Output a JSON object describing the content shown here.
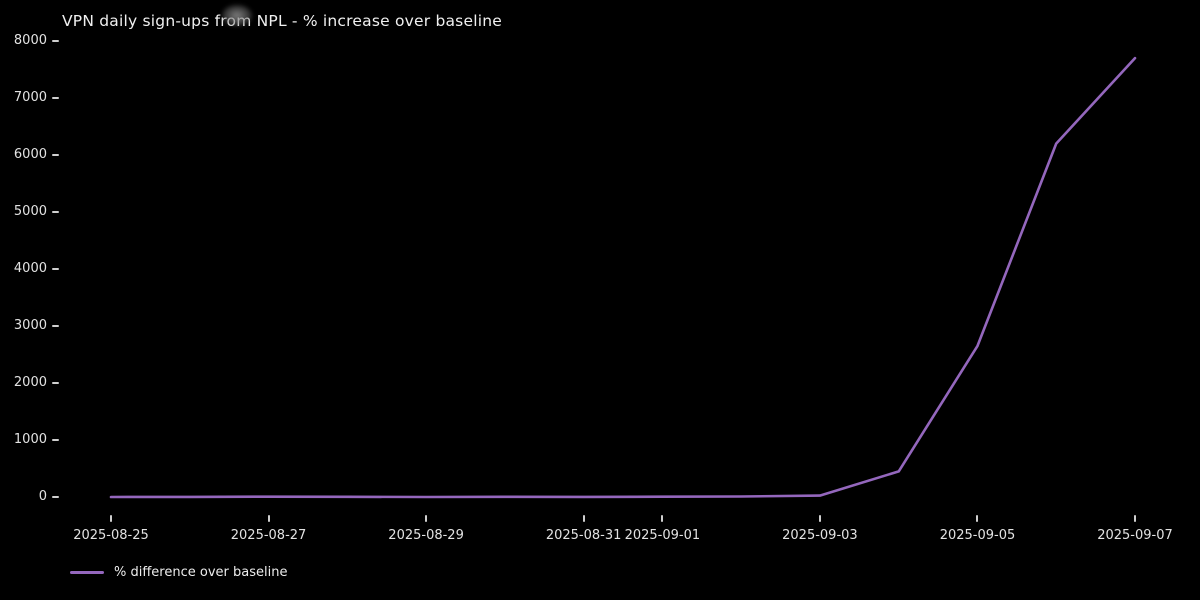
{
  "page": {
    "background_color": "#000000",
    "text_color": "#e2e2e2"
  },
  "chart_data": {
    "type": "line",
    "title": "VPN daily sign-ups from NPL - % increase over baseline",
    "xlabel": "",
    "ylabel": "",
    "x": [
      "2025-08-25",
      "2025-08-26",
      "2025-08-27",
      "2025-08-28",
      "2025-08-29",
      "2025-08-30",
      "2025-08-31",
      "2025-09-01",
      "2025-09-02",
      "2025-09-03",
      "2025-09-04",
      "2025-09-05",
      "2025-09-06",
      "2025-09-07"
    ],
    "series": [
      {
        "name": "% difference over baseline",
        "color": "#9467bd",
        "values": [
          0,
          2,
          5,
          3,
          0,
          4,
          2,
          5,
          8,
          25,
          450,
          2650,
          6200,
          7700
        ]
      }
    ],
    "x_tick_labels": [
      "2025-08-25",
      "2025-08-27",
      "2025-08-29",
      "2025-08-31",
      "2025-09-01",
      "2025-09-03",
      "2025-09-05",
      "2025-09-07"
    ],
    "y_ticks": [
      0,
      1000,
      2000,
      3000,
      4000,
      5000,
      6000,
      7000,
      8000
    ],
    "ylim": [
      0,
      8000
    ],
    "grid": false,
    "legend_position": "lower-left"
  }
}
